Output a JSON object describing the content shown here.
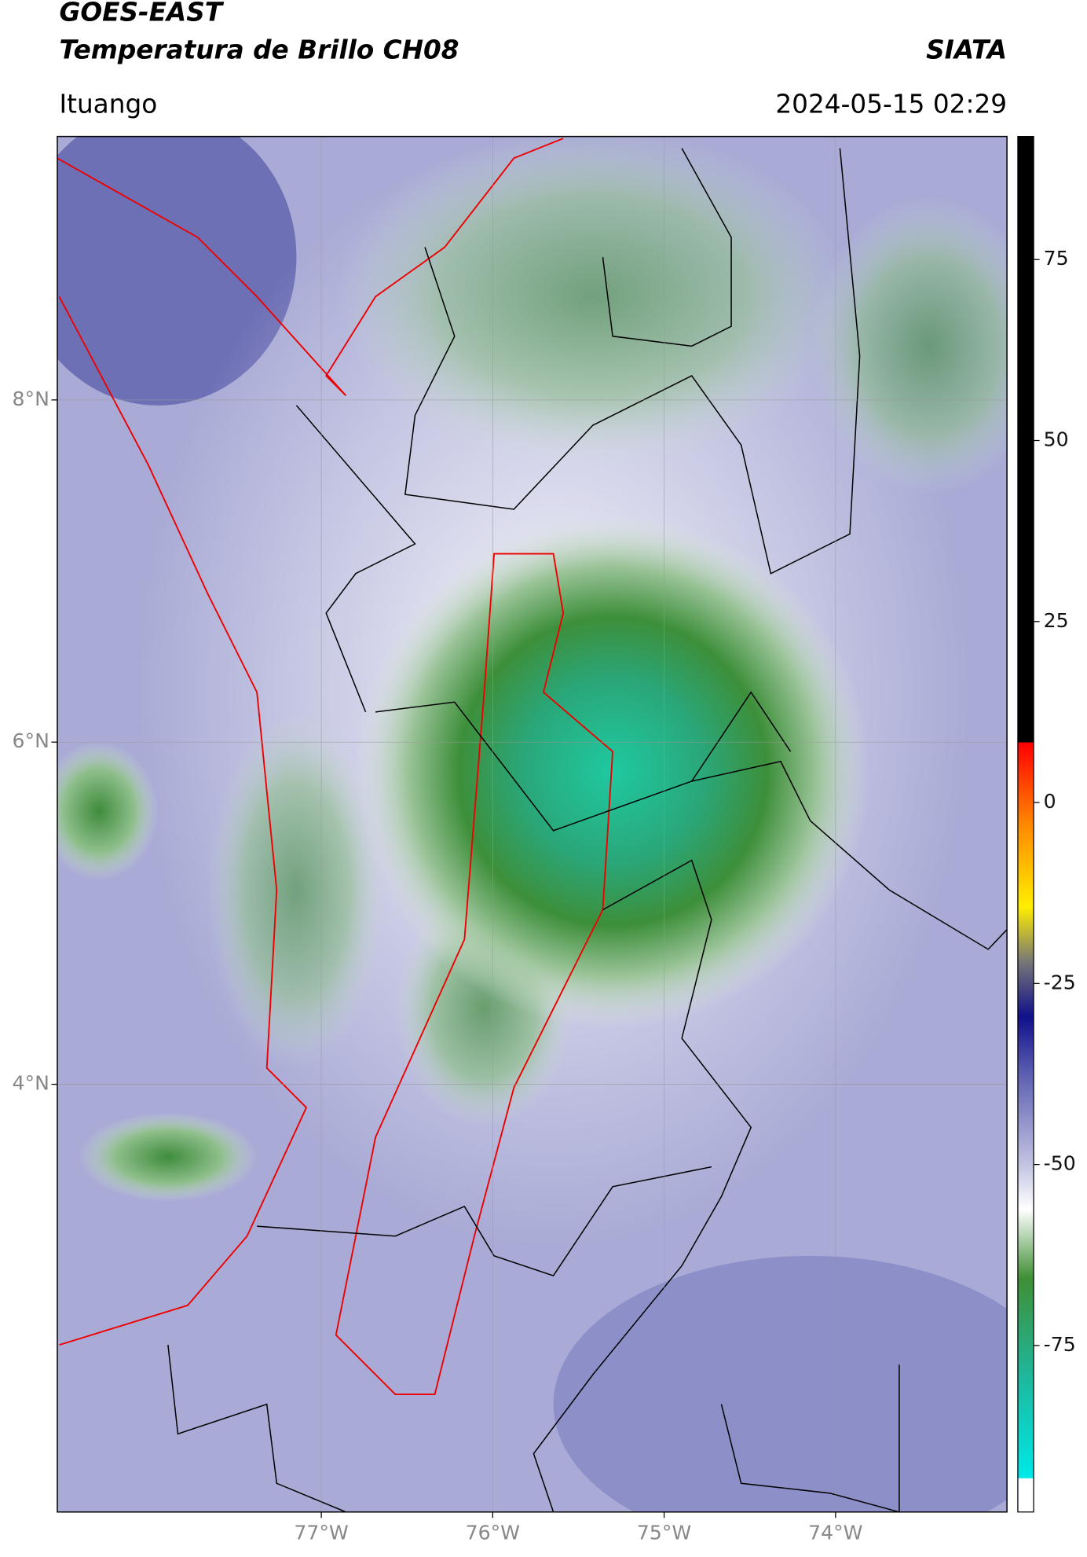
{
  "header": {
    "title": "GOES-EAST",
    "subtitle": "Temperatura de Brillo CH08",
    "source": "SIATA",
    "location": "Ituango",
    "datetime": "2024-05-15 02:29"
  },
  "map": {
    "xlim": [
      -78.54,
      -73.0
    ],
    "ylim": [
      1.5,
      9.54
    ],
    "xticks": [
      {
        "value": -77,
        "label": "77°W"
      },
      {
        "value": -76,
        "label": "76°W"
      },
      {
        "value": -75,
        "label": "75°W"
      },
      {
        "value": -74,
        "label": "74°W"
      }
    ],
    "yticks": [
      {
        "value": 8,
        "label": "8°N"
      },
      {
        "value": 6,
        "label": "6°N"
      },
      {
        "value": 4,
        "label": "4°N"
      }
    ],
    "grid": true
  },
  "colorbar": {
    "lim": [
      -98,
      92
    ],
    "ticks": [
      75,
      50,
      25,
      0,
      -25,
      -50,
      -75
    ]
  }
}
